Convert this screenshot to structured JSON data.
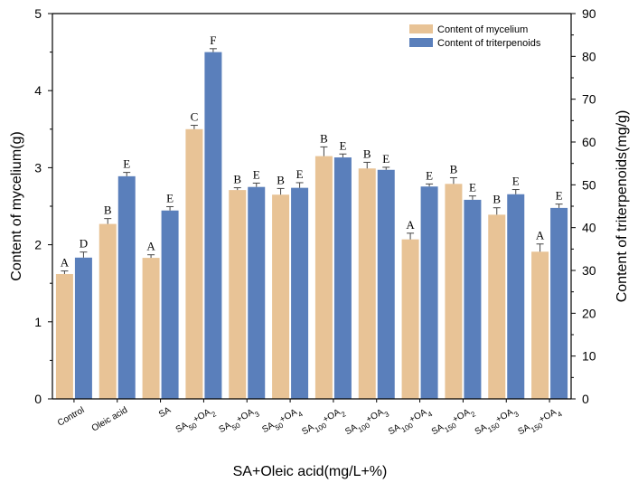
{
  "chart_data": {
    "type": "bar",
    "title": "",
    "xlabel": "SA+Oleic acid(mg/L+%)",
    "ylabel": "Content of mycelium(g)",
    "y2label": "Content of triterpenoids(mg/g)",
    "ylim": [
      0,
      5
    ],
    "y2lim": [
      0,
      90
    ],
    "yticks": [
      "0",
      "1",
      "2",
      "3",
      "4",
      "5"
    ],
    "y2ticks": [
      "0",
      "10",
      "20",
      "30",
      "40",
      "50",
      "60",
      "70",
      "80",
      "90"
    ],
    "categories": [
      {
        "base": "Control",
        "sub1": "",
        "mid": "",
        "sub2": ""
      },
      {
        "base": "Oleic acid",
        "sub1": "",
        "mid": "",
        "sub2": ""
      },
      {
        "base": "SA",
        "sub1": "",
        "mid": "",
        "sub2": ""
      },
      {
        "base": "SA",
        "sub1": "50",
        "mid": "+OA",
        "sub2": "2"
      },
      {
        "base": "SA",
        "sub1": "50",
        "mid": "+OA",
        "sub2": "3"
      },
      {
        "base": "SA",
        "sub1": "50",
        "mid": "+OA",
        "sub2": "4"
      },
      {
        "base": "SA",
        "sub1": "100",
        "mid": "+OA",
        "sub2": "2"
      },
      {
        "base": "SA",
        "sub1": "100",
        "mid": "+OA",
        "sub2": "3"
      },
      {
        "base": "SA",
        "sub1": "100",
        "mid": "+OA",
        "sub2": "4"
      },
      {
        "base": "SA",
        "sub1": "150",
        "mid": "+OA",
        "sub2": "2"
      },
      {
        "base": "SA",
        "sub1": "150",
        "mid": "+OA",
        "sub2": "3"
      },
      {
        "base": "SA",
        "sub1": "150",
        "mid": "+OA",
        "sub2": "4"
      }
    ],
    "series": [
      {
        "name": "Content of mycelium",
        "axis": "left",
        "color": "#e8c396",
        "values": [
          1.62,
          2.27,
          1.83,
          3.5,
          2.71,
          2.65,
          3.15,
          2.99,
          2.07,
          2.79,
          2.39,
          1.91
        ],
        "errors": [
          0.04,
          0.07,
          0.04,
          0.05,
          0.03,
          0.08,
          0.12,
          0.08,
          0.08,
          0.08,
          0.09,
          0.1
        ],
        "letters": [
          "A",
          "B",
          "A",
          "C",
          "B",
          "B",
          "B",
          "B",
          "A",
          "B",
          "B",
          "A"
        ]
      },
      {
        "name": "Content of triterpenoids",
        "axis": "right",
        "color": "#5a7fbb",
        "values": [
          33.0,
          52.0,
          44.0,
          81.0,
          49.5,
          49.3,
          56.4,
          53.5,
          49.6,
          46.5,
          47.8,
          44.6
        ],
        "errors": [
          1.3,
          0.9,
          0.9,
          0.8,
          0.9,
          1.2,
          0.8,
          0.6,
          0.6,
          0.9,
          1.1,
          0.9
        ],
        "letters": [
          "D",
          "E",
          "E",
          "F",
          "E",
          "E",
          "E",
          "E",
          "E",
          "E",
          "E",
          "E"
        ]
      }
    ],
    "legend_position": "top-right",
    "grid": false
  }
}
